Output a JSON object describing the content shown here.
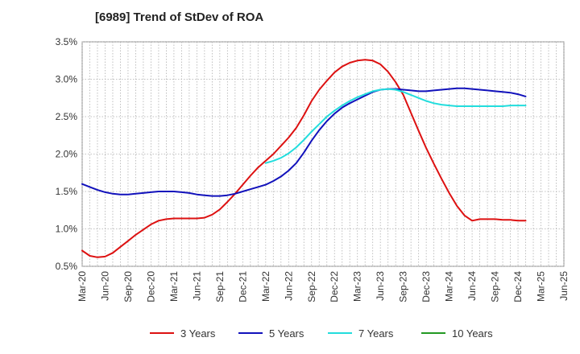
{
  "chart_data": {
    "type": "line",
    "title": "[6989]  Trend of StDev of ROA",
    "xlabel": "",
    "ylabel": "",
    "ylim": [
      0.5,
      3.5
    ],
    "yticks": [
      "0.5%",
      "1.0%",
      "1.5%",
      "2.0%",
      "2.5%",
      "3.0%",
      "3.5%"
    ],
    "yticks_values": [
      0.5,
      1.0,
      1.5,
      2.0,
      2.5,
      3.0,
      3.5
    ],
    "xticks": [
      "Mar-20",
      "Jun-20",
      "Sep-20",
      "Dec-20",
      "Mar-21",
      "Jun-21",
      "Sep-21",
      "Dec-21",
      "Mar-22",
      "Jun-22",
      "Sep-22",
      "Dec-22",
      "Mar-23",
      "Jun-23",
      "Sep-23",
      "Dec-23",
      "Mar-24",
      "Jun-24",
      "Sep-24",
      "Dec-24",
      "Mar-25",
      "Jun-25"
    ],
    "grid": true,
    "legend_position": "bottom",
    "series": [
      {
        "name": "3 Years",
        "color": "#dd1111",
        "start_index": 0,
        "values": [
          0.71,
          0.64,
          0.62,
          0.63,
          0.68,
          0.76,
          0.84,
          0.92,
          0.99,
          1.06,
          1.11,
          1.13,
          1.14,
          1.14,
          1.14,
          1.14,
          1.15,
          1.19,
          1.26,
          1.36,
          1.47,
          1.59,
          1.71,
          1.82,
          1.91,
          2.0,
          2.11,
          2.22,
          2.35,
          2.52,
          2.71,
          2.86,
          2.98,
          3.09,
          3.17,
          3.22,
          3.25,
          3.26,
          3.25,
          3.2,
          3.1,
          2.96,
          2.79,
          2.55,
          2.31,
          2.08,
          1.87,
          1.67,
          1.48,
          1.31,
          1.18,
          1.11,
          1.13,
          1.13,
          1.13,
          1.12,
          1.12,
          1.11,
          1.11
        ]
      },
      {
        "name": "5 Years",
        "color": "#1111bb",
        "start_index": 0,
        "values": [
          1.6,
          1.56,
          1.52,
          1.49,
          1.47,
          1.46,
          1.46,
          1.47,
          1.48,
          1.49,
          1.5,
          1.5,
          1.5,
          1.49,
          1.48,
          1.46,
          1.45,
          1.44,
          1.44,
          1.45,
          1.47,
          1.5,
          1.53,
          1.56,
          1.59,
          1.64,
          1.7,
          1.78,
          1.88,
          2.02,
          2.18,
          2.32,
          2.44,
          2.54,
          2.62,
          2.68,
          2.73,
          2.78,
          2.83,
          2.86,
          2.87,
          2.87,
          2.86,
          2.85,
          2.84,
          2.84,
          2.85,
          2.86,
          2.87,
          2.88,
          2.88,
          2.87,
          2.86,
          2.85,
          2.84,
          2.83,
          2.82,
          2.8,
          2.77
        ]
      },
      {
        "name": "7 Years",
        "color": "#22dddd",
        "start_index": 24,
        "values": [
          1.88,
          1.91,
          1.95,
          2.01,
          2.09,
          2.19,
          2.3,
          2.4,
          2.5,
          2.58,
          2.65,
          2.71,
          2.76,
          2.8,
          2.84,
          2.86,
          2.87,
          2.86,
          2.83,
          2.79,
          2.75,
          2.71,
          2.68,
          2.66,
          2.65,
          2.64,
          2.64,
          2.64,
          2.64,
          2.64,
          2.64,
          2.64,
          2.65,
          2.65,
          2.65
        ]
      },
      {
        "name": "10 Years",
        "color": "#229922",
        "start_index": 0,
        "values": []
      }
    ]
  }
}
